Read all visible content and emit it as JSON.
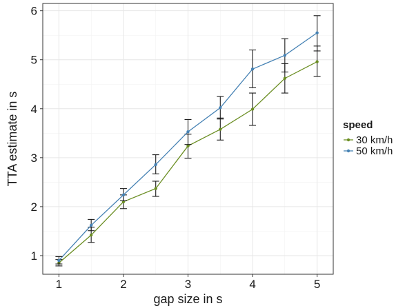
{
  "chart_data": {
    "type": "line",
    "xlabel": "gap size in s",
    "ylabel": "TTA estimate in s",
    "xlim": [
      0.75,
      5.25
    ],
    "ylim": [
      0.62,
      6.15
    ],
    "x_ticks": [
      1,
      2,
      3,
      4,
      5
    ],
    "y_ticks": [
      1,
      2,
      3,
      4,
      5,
      6
    ],
    "grid": true,
    "legend": {
      "title": "speed",
      "placement": "right"
    },
    "x": [
      1,
      1.5,
      2,
      2.5,
      3,
      3.5,
      4,
      4.5,
      5
    ],
    "series": [
      {
        "name": "30 km/h",
        "color": "#6b8e23",
        "values": [
          0.85,
          1.42,
          2.1,
          2.37,
          3.24,
          3.58,
          3.99,
          4.62,
          4.96
        ],
        "err_low": [
          0.79,
          1.27,
          1.96,
          2.21,
          2.99,
          3.36,
          3.66,
          4.32,
          4.66
        ],
        "err_high": [
          0.92,
          1.58,
          2.24,
          2.52,
          3.48,
          3.81,
          4.32,
          4.92,
          5.28
        ]
      },
      {
        "name": "50 km/h",
        "color": "#4682b4",
        "values": [
          0.9,
          1.62,
          2.24,
          2.86,
          3.53,
          4.02,
          4.81,
          5.09,
          5.55
        ],
        "err_low": [
          0.83,
          1.51,
          2.12,
          2.67,
          3.27,
          3.79,
          4.43,
          4.75,
          5.18
        ],
        "err_high": [
          0.98,
          1.74,
          2.37,
          3.06,
          3.78,
          4.25,
          5.2,
          5.43,
          5.9
        ]
      }
    ]
  }
}
